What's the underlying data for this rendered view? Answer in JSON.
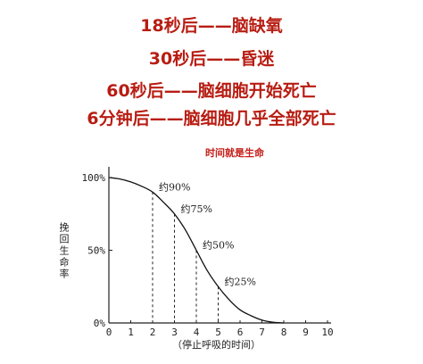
{
  "headings": [
    "18秒后——脑缺氧",
    "30秒后——昏迷",
    "60秒后——脑细胞开始死亡",
    "6分钟后——脑细胞几乎全部死亡"
  ],
  "colors": {
    "heading": "#b81d13",
    "chart_title": "#c4201a",
    "axis": "#222222"
  },
  "chart_data": {
    "type": "line",
    "title": "时间就是生命",
    "xlabel": "（停止呼吸的时间）",
    "ylabel": "挽回生命率",
    "xlim": [
      0,
      10
    ],
    "ylim": [
      0,
      100
    ],
    "x_ticks": [
      "0",
      "1",
      "2",
      "3",
      "4",
      "5",
      "6",
      "7",
      "8",
      "9",
      "10"
    ],
    "y_ticks": [
      {
        "value": 0,
        "label": "0%"
      },
      {
        "value": 50,
        "label": "50%"
      },
      {
        "value": 100,
        "label": "100%"
      }
    ],
    "series": [
      {
        "x": [
          0,
          0.5,
          1,
          1.5,
          2,
          2.5,
          3,
          3.5,
          4,
          4.5,
          5,
          5.5,
          6,
          6.5,
          7,
          7.5,
          8
        ],
        "values": [
          100,
          99,
          97,
          94,
          90,
          83,
          75,
          64,
          50,
          36,
          25,
          16,
          9,
          5,
          2,
          0.5,
          0
        ]
      }
    ],
    "annotations": [
      {
        "x": 2,
        "y": 90,
        "label": "约90%"
      },
      {
        "x": 3,
        "y": 75,
        "label": "约75%"
      },
      {
        "x": 4,
        "y": 50,
        "label": "约50%"
      },
      {
        "x": 5,
        "y": 25,
        "label": "约25%"
      }
    ],
    "grid": false
  }
}
